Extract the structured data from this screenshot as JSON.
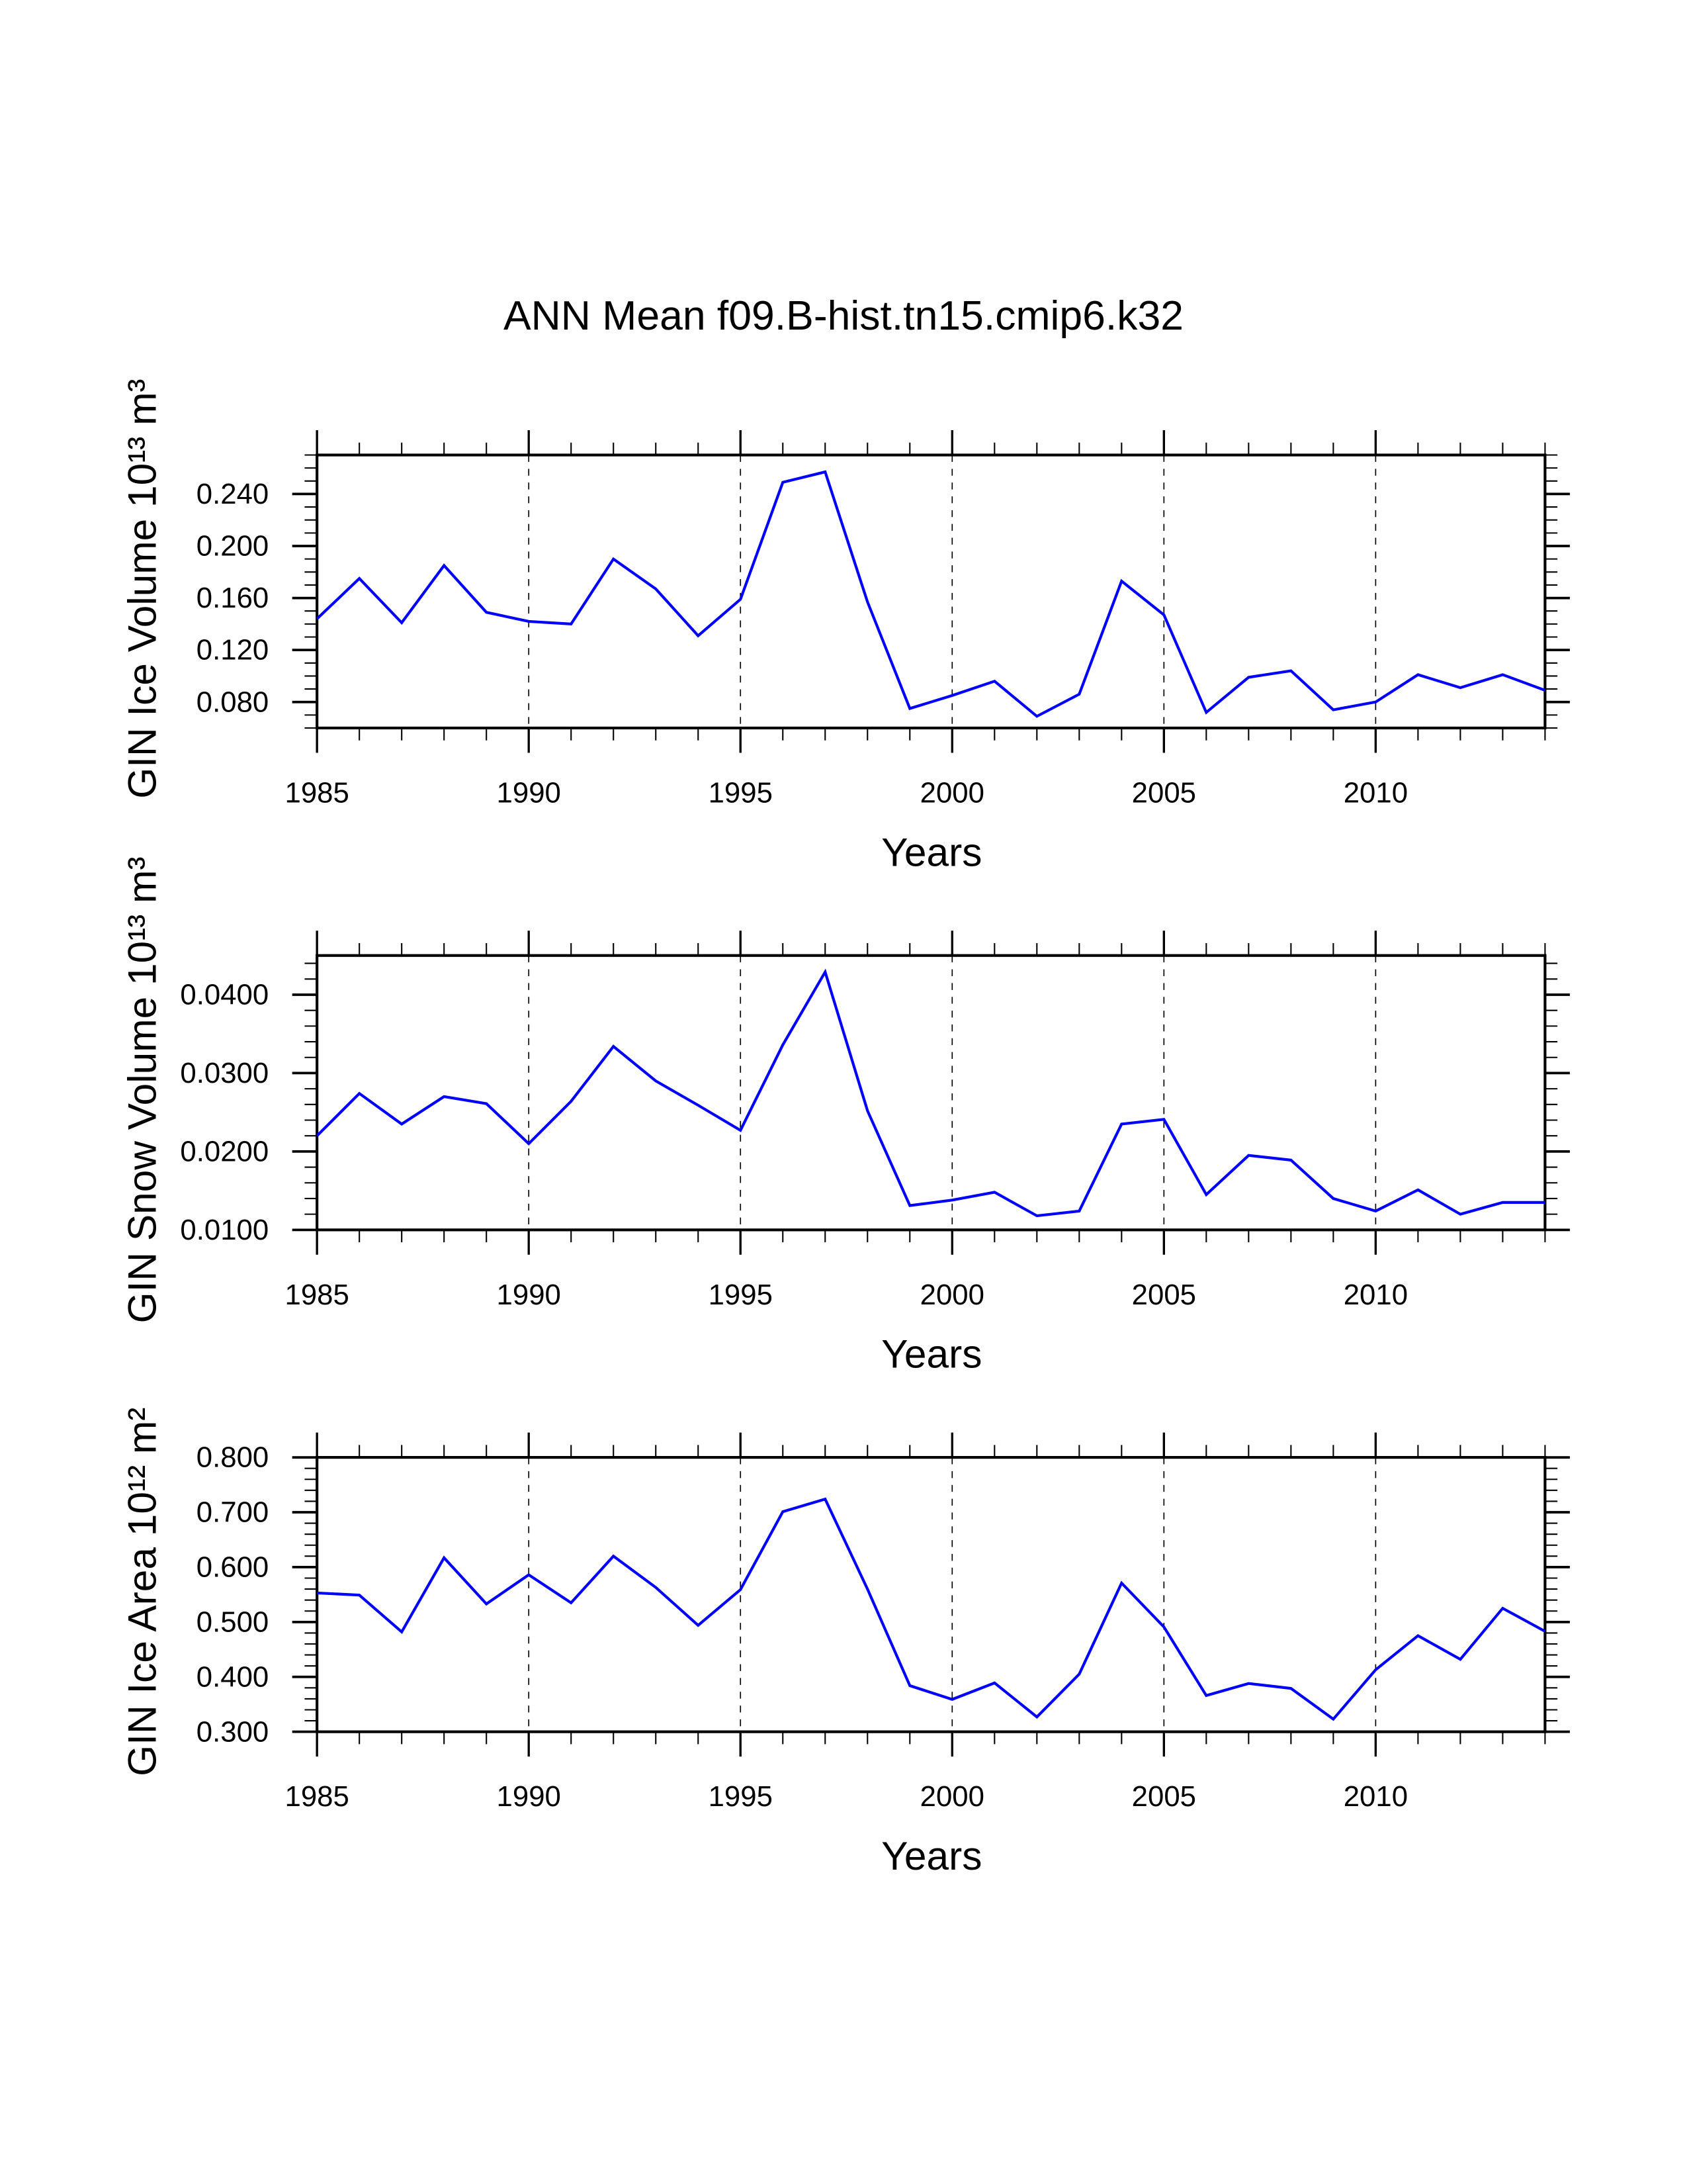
{
  "title": "ANN Mean f09.B-hist.tn15.cmip6.k32",
  "colors": {
    "line": "#0000ff",
    "axis": "#000000",
    "grid": "#000000"
  },
  "chart_data": [
    {
      "type": "line",
      "xlabel": "Years",
      "ylabel": "GIN Ice Volume 10¹³ m³",
      "xlim": [
        1985,
        2014
      ],
      "ylim": [
        0.06,
        0.27
      ],
      "xticks": [
        1985,
        1990,
        1995,
        2000,
        2005,
        2010
      ],
      "xtick_labels": [
        "1985",
        "1990",
        "1995",
        "2000",
        "2005",
        "2010"
      ],
      "yticks": [
        0.08,
        0.12,
        0.16,
        0.2,
        0.24
      ],
      "ytick_labels": [
        "0.080",
        "0.120",
        "0.160",
        "0.200",
        "0.240"
      ],
      "yminor_step": 0.01,
      "grid": "vertical dashed at major x ticks",
      "x": [
        1985,
        1986,
        1987,
        1988,
        1989,
        1990,
        1991,
        1992,
        1993,
        1994,
        1995,
        1996,
        1997,
        1998,
        1999,
        2000,
        2001,
        2002,
        2003,
        2004,
        2005,
        2006,
        2007,
        2008,
        2009,
        2010,
        2011,
        2012,
        2013,
        2014
      ],
      "y": [
        0.144,
        0.175,
        0.141,
        0.185,
        0.149,
        0.142,
        0.14,
        0.19,
        0.167,
        0.131,
        0.159,
        0.249,
        0.257,
        0.157,
        0.075,
        0.085,
        0.096,
        0.069,
        0.086,
        0.173,
        0.147,
        0.072,
        0.099,
        0.104,
        0.074,
        0.08,
        0.101,
        0.091,
        0.101,
        0.089
      ]
    },
    {
      "type": "line",
      "xlabel": "Years",
      "ylabel": "GIN Snow Volume 10¹³ m³",
      "xlim": [
        1985,
        2014
      ],
      "ylim": [
        0.01,
        0.045
      ],
      "xticks": [
        1985,
        1990,
        1995,
        2000,
        2005,
        2010
      ],
      "xtick_labels": [
        "1985",
        "1990",
        "1995",
        "2000",
        "2005",
        "2010"
      ],
      "yticks": [
        0.01,
        0.02,
        0.03,
        0.04
      ],
      "ytick_labels": [
        "0.0100",
        "0.0200",
        "0.0300",
        "0.0400"
      ],
      "yminor_step": 0.002,
      "grid": "vertical dashed at major x ticks",
      "x": [
        1985,
        1986,
        1987,
        1988,
        1989,
        1990,
        1991,
        1992,
        1993,
        1994,
        1995,
        1996,
        1997,
        1998,
        1999,
        2000,
        2001,
        2002,
        2003,
        2004,
        2005,
        2006,
        2007,
        2008,
        2009,
        2010,
        2011,
        2012,
        2013,
        2014
      ],
      "y": [
        0.022,
        0.0274,
        0.0235,
        0.027,
        0.0261,
        0.021,
        0.0264,
        0.0334,
        0.029,
        0.0259,
        0.0227,
        0.0336,
        0.0429,
        0.0252,
        0.0131,
        0.0138,
        0.0148,
        0.0118,
        0.0124,
        0.0235,
        0.0241,
        0.0145,
        0.0195,
        0.0189,
        0.014,
        0.0124,
        0.0151,
        0.012,
        0.0135,
        0.0135
      ]
    },
    {
      "type": "line",
      "xlabel": "Years",
      "ylabel": "GIN Ice Area 10¹² m²",
      "xlim": [
        1985,
        2014
      ],
      "ylim": [
        0.3,
        0.8
      ],
      "xticks": [
        1985,
        1990,
        1995,
        2000,
        2005,
        2010
      ],
      "xtick_labels": [
        "1985",
        "1990",
        "1995",
        "2000",
        "2005",
        "2010"
      ],
      "yticks": [
        0.3,
        0.4,
        0.5,
        0.6,
        0.7,
        0.8
      ],
      "ytick_labels": [
        "0.300",
        "0.400",
        "0.500",
        "0.600",
        "0.700",
        "0.800"
      ],
      "yminor_step": 0.02,
      "grid": "vertical dashed at major x ticks",
      "x": [
        1985,
        1986,
        1987,
        1988,
        1989,
        1990,
        1991,
        1992,
        1993,
        1994,
        1995,
        1996,
        1997,
        1998,
        1999,
        2000,
        2001,
        2002,
        2003,
        2004,
        2005,
        2006,
        2007,
        2008,
        2009,
        2010,
        2011,
        2012,
        2013,
        2014
      ],
      "y": [
        0.553,
        0.549,
        0.482,
        0.617,
        0.533,
        0.586,
        0.535,
        0.62,
        0.563,
        0.494,
        0.559,
        0.701,
        0.724,
        0.56,
        0.384,
        0.359,
        0.389,
        0.327,
        0.405,
        0.571,
        0.491,
        0.366,
        0.388,
        0.379,
        0.323,
        0.413,
        0.475,
        0.432,
        0.525,
        0.483
      ]
    }
  ]
}
